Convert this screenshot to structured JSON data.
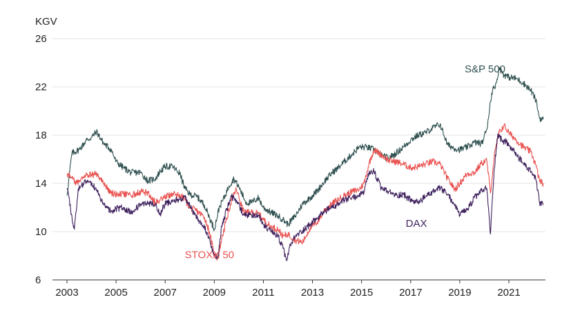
{
  "chart_data": {
    "type": "line",
    "title": "",
    "ylabel": "KGV",
    "xlabel": "",
    "xlim": [
      2003.0,
      2022.4
    ],
    "ylim": [
      6,
      26
    ],
    "yticks": [
      6,
      10,
      14,
      18,
      22,
      26
    ],
    "xticks": [
      2003,
      2005,
      2007,
      2009,
      2011,
      2013,
      2015,
      2017,
      2019,
      2021
    ],
    "grid": "horizontal",
    "series": [
      {
        "name": "S&P 500",
        "color": "#2f4f4f",
        "x": [
          2003.0,
          2003.2,
          2003.5,
          2003.8,
          2004.0,
          2004.2,
          2004.5,
          2004.8,
          2005.0,
          2005.3,
          2005.6,
          2006.0,
          2006.3,
          2006.6,
          2006.8,
          2007.0,
          2007.3,
          2007.6,
          2007.8,
          2008.0,
          2008.3,
          2008.6,
          2008.8,
          2009.0,
          2009.2,
          2009.4,
          2009.6,
          2009.8,
          2010.0,
          2010.3,
          2010.5,
          2010.8,
          2011.0,
          2011.3,
          2011.6,
          2011.8,
          2012.0,
          2012.3,
          2012.6,
          2012.9,
          2013.2,
          2013.5,
          2013.8,
          2014.0,
          2014.3,
          2014.6,
          2014.9,
          2015.2,
          2015.5,
          2015.8,
          2016.1,
          2016.4,
          2016.7,
          2017.0,
          2017.3,
          2017.6,
          2017.9,
          2018.2,
          2018.5,
          2018.8,
          2019.0,
          2019.3,
          2019.6,
          2019.9,
          2020.1,
          2020.3,
          2020.5,
          2020.6,
          2020.8,
          2021.0,
          2021.3,
          2021.6,
          2021.9,
          2022.1,
          2022.25,
          2022.4
        ],
        "y": [
          13.0,
          16.5,
          16.8,
          17.6,
          17.8,
          18.3,
          17.3,
          16.8,
          15.8,
          15.3,
          14.9,
          14.9,
          14.2,
          14.4,
          15.0,
          15.4,
          15.4,
          14.8,
          13.6,
          13.1,
          12.9,
          12.2,
          11.2,
          10.2,
          12.0,
          12.8,
          13.8,
          14.4,
          13.7,
          12.4,
          12.4,
          12.8,
          12.0,
          11.6,
          11.3,
          11.0,
          10.6,
          11.3,
          12.3,
          12.8,
          13.4,
          14.2,
          14.9,
          15.2,
          15.8,
          16.4,
          17.0,
          17.0,
          16.8,
          16.3,
          16.1,
          16.5,
          17.0,
          17.6,
          18.0,
          18.2,
          18.6,
          18.9,
          17.2,
          16.9,
          16.8,
          17.0,
          17.4,
          17.3,
          18.5,
          21.5,
          22.4,
          23.6,
          23.0,
          22.8,
          22.7,
          22.3,
          21.7,
          20.9,
          19.4,
          19.3
        ]
      },
      {
        "name": "STOXX 50",
        "color": "#e8514f",
        "x": [
          2003.0,
          2003.2,
          2003.4,
          2003.6,
          2003.8,
          2004.0,
          2004.2,
          2004.5,
          2004.8,
          2005.0,
          2005.3,
          2005.6,
          2006.0,
          2006.3,
          2006.6,
          2006.8,
          2007.0,
          2007.3,
          2007.6,
          2007.8,
          2008.0,
          2008.3,
          2008.6,
          2008.8,
          2009.0,
          2009.15,
          2009.3,
          2009.5,
          2009.7,
          2009.9,
          2010.2,
          2010.5,
          2010.8,
          2011.0,
          2011.3,
          2011.6,
          2011.8,
          2012.0,
          2012.3,
          2012.6,
          2012.9,
          2013.2,
          2013.5,
          2013.8,
          2014.0,
          2014.3,
          2014.6,
          2014.9,
          2015.1,
          2015.3,
          2015.5,
          2015.8,
          2016.1,
          2016.4,
          2016.7,
          2017.0,
          2017.3,
          2017.6,
          2017.9,
          2018.2,
          2018.5,
          2018.8,
          2019.0,
          2019.3,
          2019.6,
          2019.9,
          2020.1,
          2020.25,
          2020.4,
          2020.6,
          2020.8,
          2021.0,
          2021.3,
          2021.6,
          2021.9,
          2022.1,
          2022.25,
          2022.4
        ],
        "y": [
          14.8,
          14.4,
          14.0,
          14.5,
          14.8,
          14.7,
          14.8,
          14.0,
          13.2,
          13.1,
          13.1,
          13.0,
          13.3,
          13.2,
          12.4,
          12.7,
          12.9,
          13.1,
          13.0,
          12.7,
          12.0,
          11.7,
          11.2,
          10.0,
          8.0,
          7.8,
          9.4,
          11.0,
          12.6,
          13.5,
          11.6,
          11.6,
          11.5,
          11.0,
          10.4,
          10.2,
          9.6,
          9.8,
          9.3,
          9.1,
          10.3,
          10.8,
          11.8,
          12.3,
          12.6,
          13.0,
          13.3,
          13.5,
          14.0,
          15.6,
          16.8,
          16.4,
          15.9,
          15.8,
          15.6,
          15.3,
          15.4,
          15.6,
          15.8,
          15.6,
          14.4,
          13.5,
          14.0,
          14.8,
          14.9,
          15.7,
          15.9,
          13.2,
          16.2,
          18.2,
          18.8,
          18.2,
          17.6,
          17.0,
          16.6,
          15.5,
          14.2,
          14.0
        ]
      },
      {
        "name": "DAX",
        "color": "#3d1f5c",
        "x": [
          2003.0,
          2003.15,
          2003.3,
          2003.45,
          2003.6,
          2003.8,
          2004.0,
          2004.2,
          2004.5,
          2004.8,
          2005.0,
          2005.3,
          2005.6,
          2006.0,
          2006.3,
          2006.6,
          2006.8,
          2007.0,
          2007.3,
          2007.6,
          2007.8,
          2008.0,
          2008.3,
          2008.6,
          2008.8,
          2009.0,
          2009.15,
          2009.3,
          2009.5,
          2009.7,
          2009.9,
          2010.2,
          2010.5,
          2010.8,
          2011.0,
          2011.3,
          2011.6,
          2011.8,
          2011.95,
          2012.1,
          2012.3,
          2012.6,
          2012.9,
          2013.2,
          2013.5,
          2013.8,
          2014.0,
          2014.3,
          2014.6,
          2014.9,
          2015.1,
          2015.3,
          2015.5,
          2015.8,
          2016.1,
          2016.4,
          2016.7,
          2017.0,
          2017.3,
          2017.6,
          2017.9,
          2018.2,
          2018.5,
          2018.8,
          2019.0,
          2019.3,
          2019.6,
          2019.9,
          2020.1,
          2020.25,
          2020.4,
          2020.55,
          2020.7,
          2020.9,
          2021.1,
          2021.3,
          2021.6,
          2021.9,
          2022.1,
          2022.25,
          2022.4
        ],
        "y": [
          13.6,
          11.8,
          10.2,
          13.4,
          13.9,
          14.1,
          14.0,
          13.4,
          12.2,
          11.7,
          11.9,
          12.0,
          11.6,
          12.2,
          12.3,
          12.2,
          11.5,
          12.3,
          12.6,
          12.7,
          12.9,
          12.1,
          11.1,
          10.4,
          9.4,
          8.1,
          7.8,
          10.5,
          11.8,
          12.9,
          12.6,
          11.4,
          11.4,
          11.3,
          10.6,
          10.0,
          9.6,
          8.6,
          7.6,
          8.9,
          9.6,
          10.1,
          10.6,
          11.1,
          11.7,
          12.0,
          12.2,
          12.6,
          12.8,
          13.0,
          13.3,
          14.8,
          15.0,
          13.6,
          13.3,
          13.0,
          13.1,
          12.6,
          12.4,
          12.9,
          13.3,
          13.6,
          13.1,
          12.2,
          11.4,
          11.8,
          12.8,
          13.4,
          13.6,
          9.8,
          15.2,
          18.1,
          17.6,
          17.4,
          16.9,
          16.4,
          15.6,
          15.0,
          14.3,
          12.4,
          12.2
        ]
      }
    ],
    "annotations": [
      {
        "text": "S&P 500",
        "x": 2019.2,
        "y": 23.2,
        "series": "S&P 500"
      },
      {
        "text": "STOXX 50",
        "x": 2007.8,
        "y": 7.8,
        "series": "STOXX 50"
      },
      {
        "text": "DAX",
        "x": 2016.8,
        "y": 10.4,
        "series": "DAX"
      }
    ]
  }
}
